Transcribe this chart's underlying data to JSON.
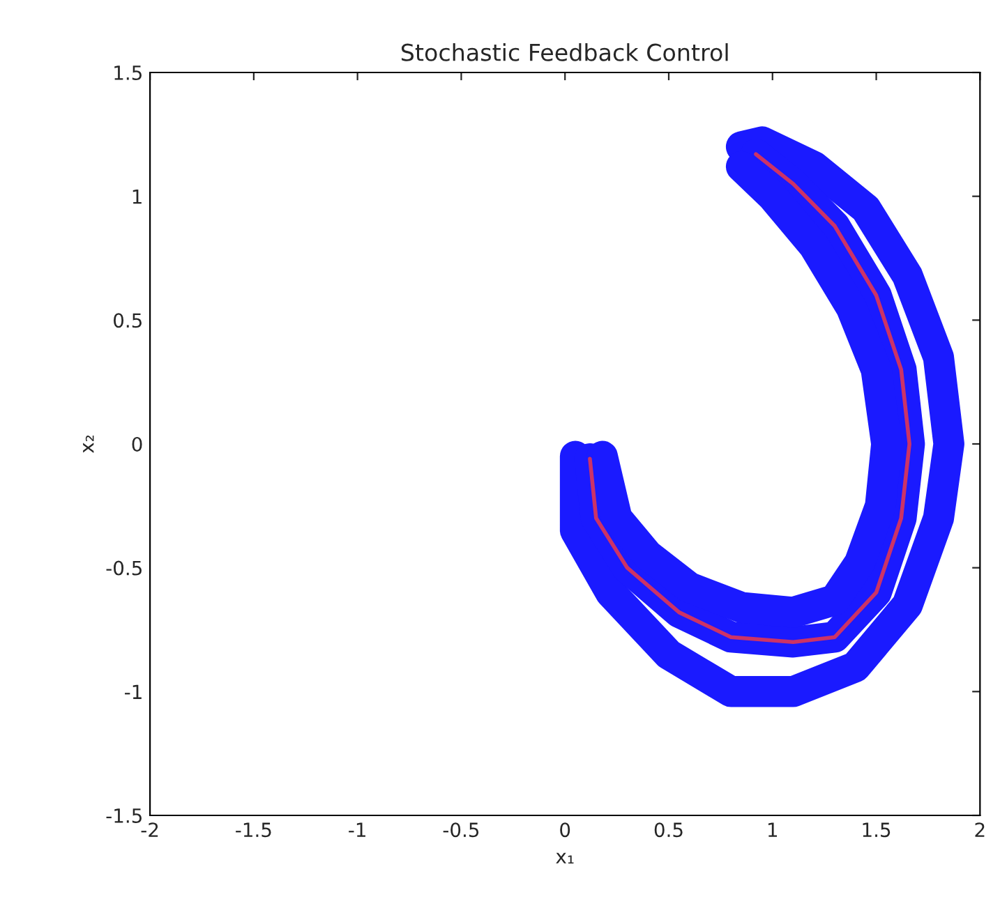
{
  "chart_data": {
    "type": "line",
    "title": "Stochastic Feedback Control",
    "xlabel": "x₁",
    "ylabel": "x₂",
    "xlim": [
      -2,
      2
    ],
    "xticks": [
      -2,
      -1.5,
      -1,
      -0.5,
      0,
      0.5,
      1,
      1.5,
      2
    ],
    "ylim": [
      -1.5,
      1.5
    ],
    "yticks": [
      -1.5,
      -1,
      -0.5,
      0,
      0.5,
      1,
      1.5
    ],
    "grid": false,
    "legend": false,
    "marker": "none",
    "line_style": "solid",
    "series": [
      {
        "color": "#1a1aff",
        "x": [
          0.05,
          0.05,
          0.22,
          0.5,
          0.8,
          1.1,
          1.4,
          1.65,
          1.8,
          1.85,
          1.8,
          1.65,
          1.45,
          1.2,
          0.95,
          0.85
        ],
        "values": [
          -0.05,
          -0.35,
          -0.6,
          -0.85,
          -1.0,
          -1.0,
          -0.9,
          -0.65,
          -0.3,
          0.0,
          0.35,
          0.68,
          0.95,
          1.12,
          1.22,
          1.2
        ]
      },
      {
        "color": "#1a1aff",
        "x": [
          0.12,
          0.15,
          0.3,
          0.55,
          0.8,
          1.1,
          1.3,
          1.5,
          1.62,
          1.66,
          1.62,
          1.5,
          1.3,
          1.1,
          0.92
        ],
        "values": [
          -0.06,
          -0.3,
          -0.5,
          -0.68,
          -0.78,
          -0.8,
          -0.78,
          -0.6,
          -0.3,
          0.0,
          0.3,
          0.6,
          0.88,
          1.05,
          1.17
        ]
      },
      {
        "color": "#1a1aff",
        "x": [
          0.18,
          0.25,
          0.4,
          0.6,
          0.85,
          1.1,
          1.3,
          1.42,
          1.52,
          1.55,
          1.5,
          1.38,
          1.2,
          1.0,
          0.85
        ],
        "values": [
          -0.05,
          -0.3,
          -0.45,
          -0.58,
          -0.66,
          -0.68,
          -0.63,
          -0.48,
          -0.25,
          0.0,
          0.3,
          0.55,
          0.8,
          1.0,
          1.12
        ]
      },
      {
        "color": "#cc3366",
        "x": [
          0.12,
          0.15,
          0.3,
          0.55,
          0.8,
          1.1,
          1.3,
          1.5,
          1.62,
          1.66,
          1.62,
          1.5,
          1.3,
          1.1,
          0.92
        ],
        "values": [
          -0.06,
          -0.3,
          -0.5,
          -0.68,
          -0.78,
          -0.8,
          -0.78,
          -0.6,
          -0.3,
          0.0,
          0.3,
          0.6,
          0.88,
          1.05,
          1.17
        ]
      }
    ]
  }
}
